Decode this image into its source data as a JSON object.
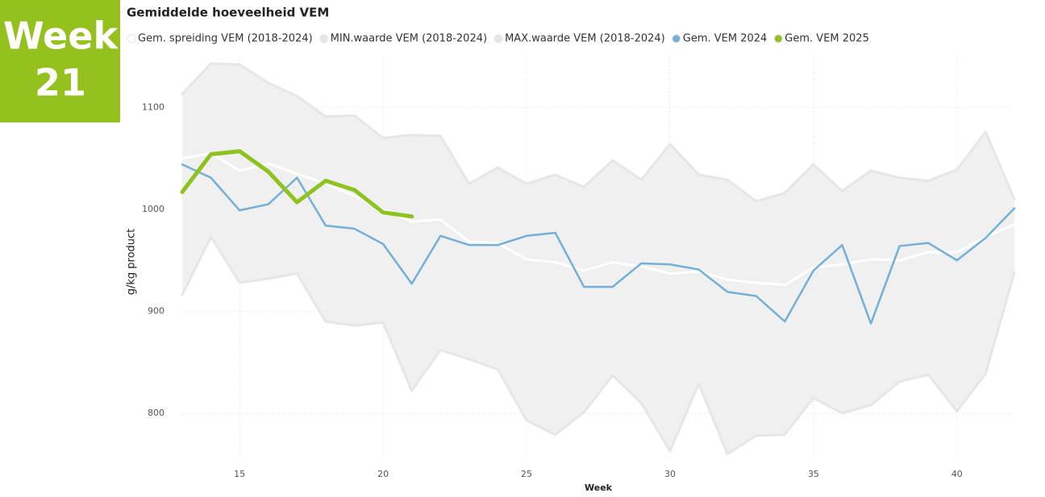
{
  "badge": {
    "label": "Week",
    "number": "21",
    "color": "#95c11f"
  },
  "chart_data": {
    "type": "line",
    "title": "Gemiddelde hoeveelheid VEM",
    "x_label": "Week",
    "y_label": "g/kg product",
    "x": [
      13,
      14,
      15,
      16,
      17,
      18,
      19,
      20,
      21,
      22,
      23,
      24,
      25,
      26,
      27,
      28,
      29,
      30,
      31,
      32,
      33,
      34,
      35,
      36,
      37,
      38,
      39,
      40,
      41,
      42
    ],
    "xlim": [
      13,
      42
    ],
    "xticks": [
      15,
      20,
      25,
      30,
      35,
      40
    ],
    "ylim": [
      755,
      1150
    ],
    "yticks": [
      800,
      900,
      1000,
      1100
    ],
    "grid": true,
    "band_color": "#f0f0f0",
    "series": [
      {
        "name": "Gem. spreiding VEM (2018-2024)",
        "color": "#ffffff",
        "width": 3,
        "values": [
          1050,
          1055,
          1038,
          1045,
          1035,
          1025,
          1013,
          1000,
          988,
          990,
          968,
          967,
          951,
          948,
          940,
          948,
          944,
          937,
          939,
          931,
          928,
          926,
          943,
          946,
          951,
          950,
          958,
          958,
          973,
          985
        ]
      },
      {
        "name": "MIN.waarde VEM (2018-2024)",
        "color": "#e6e6e6",
        "width": 3,
        "role": "min",
        "values": [
          916,
          973,
          928,
          932,
          937,
          890,
          886,
          889,
          822,
          862,
          853,
          843,
          793,
          779,
          801,
          837,
          810,
          763,
          829,
          760,
          778,
          779,
          815,
          800,
          808,
          831,
          838,
          802,
          839,
          938
        ]
      },
      {
        "name": "MAX.waarde VEM (2018-2024)",
        "color": "#e6e6e6",
        "width": 3,
        "role": "max",
        "values": [
          1113,
          1143,
          1142,
          1124,
          1111,
          1091,
          1092,
          1070,
          1073,
          1072,
          1025,
          1041,
          1025,
          1034,
          1022,
          1048,
          1029,
          1064,
          1034,
          1029,
          1008,
          1016,
          1044,
          1018,
          1038,
          1031,
          1028,
          1039,
          1076,
          1010
        ]
      },
      {
        "name": "Gem. VEM 2024",
        "color": "#74afd6",
        "width": 2.5,
        "values": [
          1044,
          1031,
          999,
          1005,
          1031,
          984,
          981,
          966,
          927,
          974,
          965,
          965,
          974,
          977,
          924,
          924,
          947,
          946,
          941,
          919,
          915,
          890,
          940,
          965,
          888,
          964,
          967,
          950,
          972,
          1001
        ]
      },
      {
        "name": "Gem. VEM 2025",
        "color": "#8dc21f",
        "width": 5,
        "values": [
          1017,
          1054,
          1057,
          1037,
          1007,
          1028,
          1019,
          997,
          993,
          null,
          null,
          null,
          null,
          null,
          null,
          null,
          null,
          null,
          null,
          null,
          null,
          null,
          null,
          null,
          null,
          null,
          null,
          null,
          null,
          null
        ]
      }
    ]
  }
}
